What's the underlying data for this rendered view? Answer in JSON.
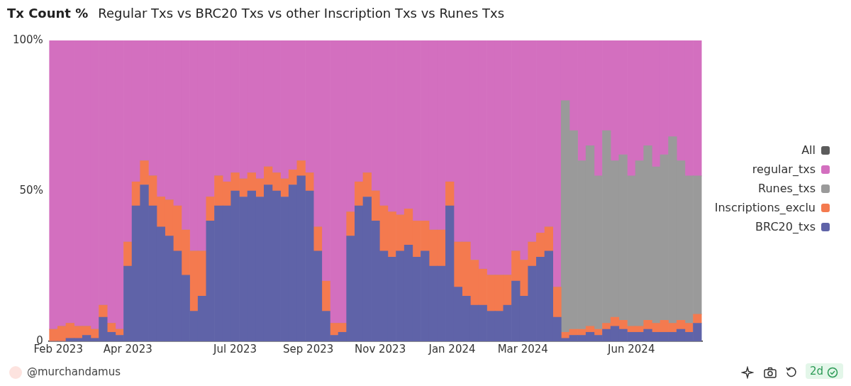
{
  "chart_data": {
    "type": "bar",
    "stacked": true,
    "title": "Tx Count %",
    "subtitle": "Regular Txs vs BRC20 Txs vs other Inscription Txs vs Runes Txs",
    "x": [
      "2023-01-28",
      "2023-02-04",
      "2023-02-11",
      "2023-02-18",
      "2023-02-25",
      "2023-03-04",
      "2023-03-11",
      "2023-03-18",
      "2023-03-25",
      "2023-04-01",
      "2023-04-08",
      "2023-04-15",
      "2023-04-22",
      "2023-04-29",
      "2023-05-06",
      "2023-05-13",
      "2023-05-20",
      "2023-05-27",
      "2023-06-03",
      "2023-06-10",
      "2023-06-17",
      "2023-06-24",
      "2023-07-01",
      "2023-07-08",
      "2023-07-15",
      "2023-07-22",
      "2023-07-29",
      "2023-08-05",
      "2023-08-12",
      "2023-08-19",
      "2023-08-26",
      "2023-09-02",
      "2023-09-09",
      "2023-09-16",
      "2023-09-23",
      "2023-09-30",
      "2023-10-07",
      "2023-10-14",
      "2023-10-21",
      "2023-10-28",
      "2023-11-04",
      "2023-11-11",
      "2023-11-18",
      "2023-11-25",
      "2023-12-02",
      "2023-12-09",
      "2023-12-16",
      "2023-12-23",
      "2023-12-30",
      "2024-01-06",
      "2024-01-13",
      "2024-01-20",
      "2024-01-27",
      "2024-02-03",
      "2024-02-10",
      "2024-02-17",
      "2024-02-24",
      "2024-03-02",
      "2024-03-09",
      "2024-03-16",
      "2024-03-23",
      "2024-03-30",
      "2024-04-06",
      "2024-04-13",
      "2024-04-20",
      "2024-04-27",
      "2024-05-04",
      "2024-05-11",
      "2024-05-18",
      "2024-05-25",
      "2024-06-01",
      "2024-06-08",
      "2024-06-15",
      "2024-06-22",
      "2024-06-29",
      "2024-07-06",
      "2024-07-13",
      "2024-07-20",
      "2024-07-27"
    ],
    "series": [
      {
        "name": "BRC20_txs",
        "color": "#5f63a8",
        "values": [
          0,
          0,
          1,
          1,
          2,
          1,
          8,
          3,
          2,
          25,
          45,
          52,
          45,
          38,
          35,
          30,
          22,
          10,
          15,
          40,
          45,
          45,
          50,
          48,
          50,
          48,
          52,
          50,
          48,
          52,
          55,
          50,
          30,
          10,
          2,
          3,
          35,
          45,
          48,
          40,
          30,
          28,
          30,
          32,
          28,
          30,
          25,
          25,
          45,
          18,
          15,
          12,
          12,
          10,
          10,
          12,
          20,
          15,
          25,
          28,
          30,
          8,
          1,
          2,
          2,
          3,
          2,
          4,
          5,
          4,
          3,
          3,
          4,
          3,
          3,
          3,
          4,
          3,
          6
        ]
      },
      {
        "name": "Inscriptions_exclu",
        "color": "#f47a4f",
        "values": [
          4,
          5,
          5,
          4,
          3,
          3,
          4,
          3,
          2,
          8,
          8,
          8,
          10,
          10,
          12,
          15,
          15,
          20,
          15,
          8,
          10,
          8,
          6,
          6,
          6,
          6,
          6,
          6,
          6,
          5,
          5,
          6,
          8,
          10,
          4,
          3,
          8,
          8,
          8,
          10,
          15,
          15,
          12,
          12,
          12,
          10,
          12,
          12,
          8,
          15,
          18,
          15,
          12,
          12,
          12,
          10,
          10,
          12,
          8,
          8,
          8,
          10,
          2,
          2,
          2,
          2,
          2,
          2,
          3,
          3,
          2,
          2,
          3,
          3,
          4,
          3,
          3,
          3,
          3
        ]
      },
      {
        "name": "Runes_txs",
        "color": "#9a9a9a",
        "values": [
          0,
          0,
          0,
          0,
          0,
          0,
          0,
          0,
          0,
          0,
          0,
          0,
          0,
          0,
          0,
          0,
          0,
          0,
          0,
          0,
          0,
          0,
          0,
          0,
          0,
          0,
          0,
          0,
          0,
          0,
          0,
          0,
          0,
          0,
          0,
          0,
          0,
          0,
          0,
          0,
          0,
          0,
          0,
          0,
          0,
          0,
          0,
          0,
          0,
          0,
          0,
          0,
          0,
          0,
          0,
          0,
          0,
          0,
          0,
          0,
          0,
          0,
          77,
          66,
          56,
          60,
          51,
          64,
          52,
          55,
          50,
          55,
          58,
          52,
          55,
          62,
          53,
          49,
          46
        ]
      },
      {
        "name": "regular_txs",
        "color": "#d36fbf",
        "values": [
          96,
          95,
          94,
          95,
          95,
          96,
          88,
          94,
          96,
          67,
          47,
          40,
          45,
          52,
          53,
          55,
          63,
          70,
          70,
          52,
          45,
          47,
          44,
          46,
          44,
          46,
          42,
          44,
          46,
          43,
          40,
          44,
          62,
          80,
          94,
          94,
          57,
          47,
          44,
          50,
          55,
          57,
          58,
          56,
          60,
          60,
          63,
          63,
          47,
          67,
          67,
          73,
          76,
          78,
          78,
          78,
          70,
          73,
          67,
          64,
          62,
          82,
          20,
          30,
          40,
          35,
          45,
          30,
          40,
          38,
          45,
          40,
          35,
          42,
          38,
          32,
          40,
          45,
          45
        ]
      },
      {
        "name": "All",
        "color": "#5c5c5c",
        "values": [
          null,
          null,
          null,
          null,
          null,
          null,
          null,
          null,
          null,
          null,
          null,
          null,
          null,
          null,
          null,
          null,
          null,
          null,
          null,
          null,
          null,
          null,
          null,
          null,
          null,
          null,
          null,
          null,
          null,
          null,
          null,
          null,
          null,
          null,
          null,
          null,
          null,
          null,
          null,
          null,
          null,
          null,
          null,
          null,
          null,
          null,
          null,
          null,
          null,
          null,
          null,
          null,
          null,
          null,
          null,
          null,
          null,
          null,
          null,
          null,
          null,
          null,
          null,
          null,
          null,
          null,
          null,
          null,
          null,
          null,
          null,
          null,
          null,
          null,
          null,
          null,
          null,
          null,
          null
        ]
      }
    ],
    "xlim": [
      "2023-01-24",
      "2024-07-31"
    ],
    "xticks": [
      {
        "value": "2023-02-01",
        "label": "Feb 2023"
      },
      {
        "value": "2023-04-01",
        "label": "Apr 2023"
      },
      {
        "value": "2023-07-01",
        "label": "Jul 2023"
      },
      {
        "value": "2023-09-01",
        "label": "Sep 2023"
      },
      {
        "value": "2023-11-01",
        "label": "Nov 2023"
      },
      {
        "value": "2024-01-01",
        "label": "Jan 2024"
      },
      {
        "value": "2024-03-01",
        "label": "Mar 2024"
      },
      {
        "value": "2024-06-01",
        "label": "Jun 2024"
      }
    ],
    "ylim": [
      0,
      100
    ],
    "yticks": [
      {
        "value": 0,
        "label": "0"
      },
      {
        "value": 50,
        "label": "50%"
      },
      {
        "value": 100,
        "label": "100%"
      }
    ],
    "legend": "right",
    "annotations": [
      "@murchandamus",
      "2d"
    ]
  }
}
